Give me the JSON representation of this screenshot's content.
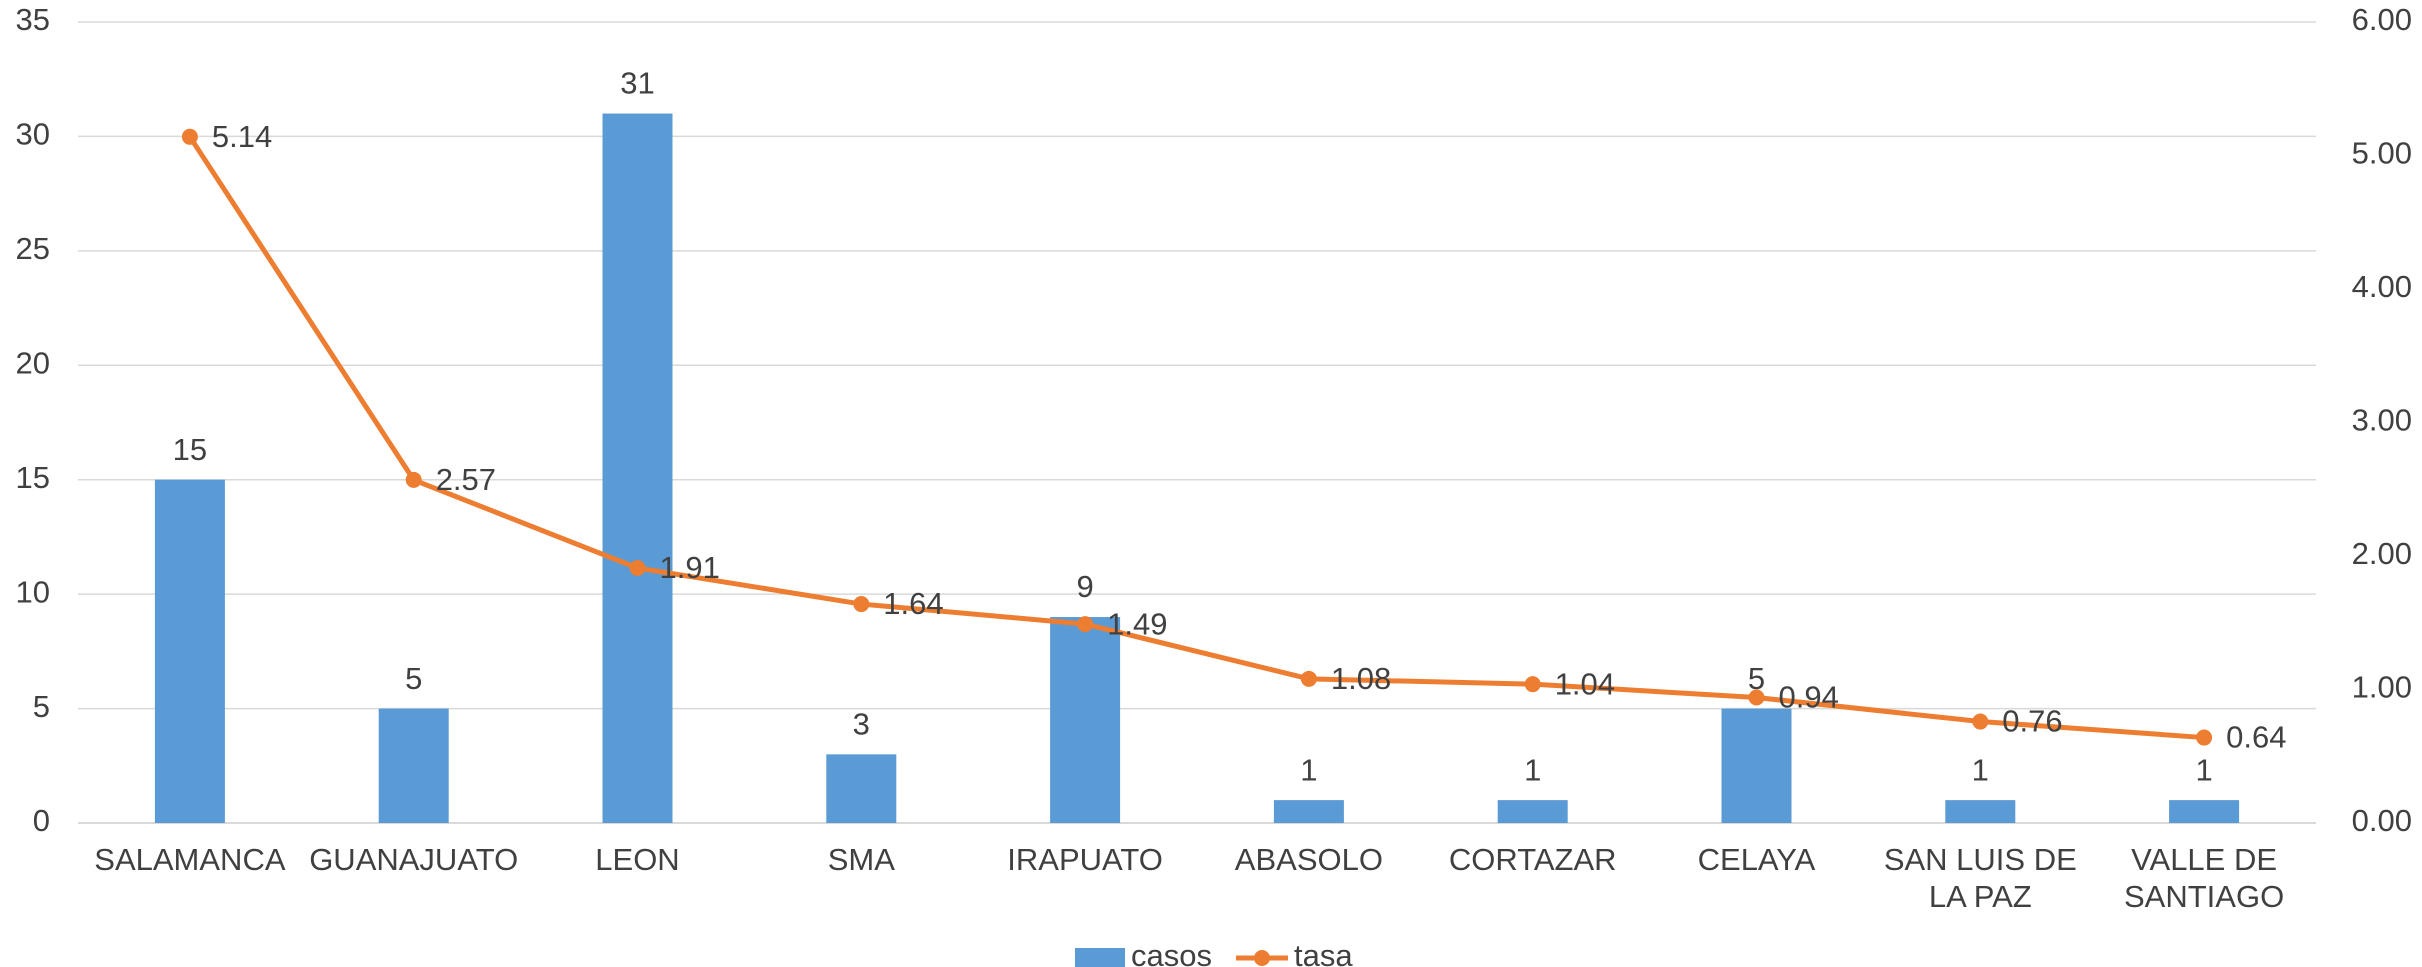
{
  "chart_data": {
    "type": "bar_line",
    "categories": [
      "SALAMANCA",
      "GUANAJUATO",
      "LEON",
      "SMA",
      "IRAPUATO",
      "ABASOLO",
      "CORTAZAR",
      "CELAYA",
      "SAN LUIS DE LA PAZ",
      "VALLE DE SANTIAGO"
    ],
    "series": [
      {
        "name": "casos",
        "type": "bar",
        "color": "#5b9bd5",
        "values": [
          15,
          5,
          31,
          3,
          9,
          1,
          1,
          5,
          1,
          1
        ]
      },
      {
        "name": "tasa",
        "type": "line",
        "axis": "y2",
        "color": "#ed7d31",
        "values": [
          5.14,
          2.57,
          1.91,
          1.64,
          1.49,
          1.08,
          1.04,
          0.94,
          0.76,
          0.64
        ]
      }
    ],
    "ylim": [
      0,
      35
    ],
    "yticks": [
      0,
      5,
      10,
      15,
      20,
      25,
      30,
      35
    ],
    "y2lim": [
      0,
      6
    ],
    "y2ticks": [
      {
        "value": 0,
        "label": "0.00"
      },
      {
        "value": 1,
        "label": "1.00"
      },
      {
        "value": 2,
        "label": "2.00"
      },
      {
        "value": 3,
        "label": "3.00"
      },
      {
        "value": 4,
        "label": "4.00"
      },
      {
        "value": 5,
        "label": "5.00"
      },
      {
        "value": 6,
        "label": "6.00"
      }
    ],
    "grid": true,
    "legend": "bottom"
  }
}
